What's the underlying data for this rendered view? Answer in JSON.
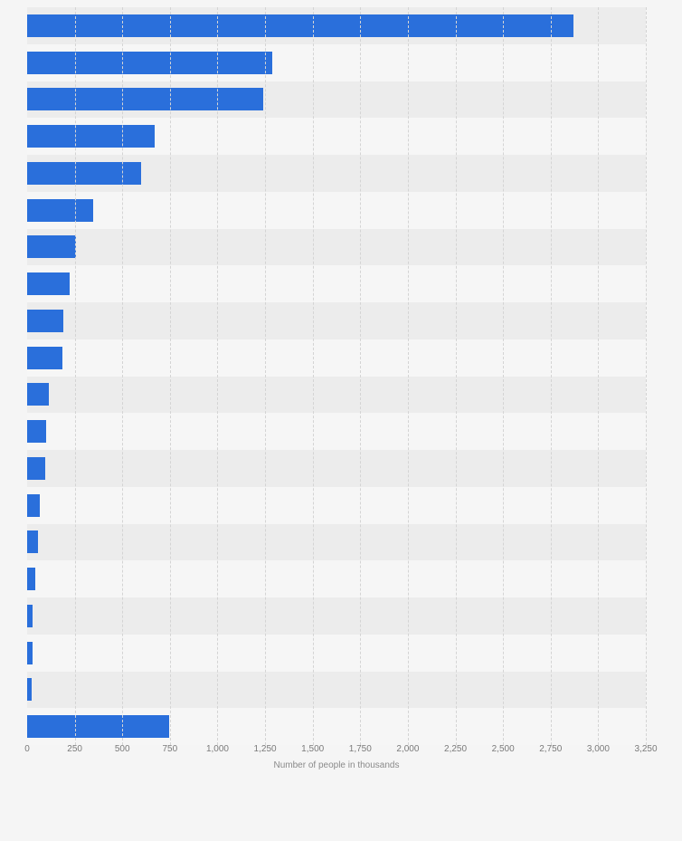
{
  "chart_data": {
    "type": "bar",
    "orientation": "horizontal",
    "title": "",
    "xlabel": "Number of people in thousands",
    "ylabel": "",
    "xlim": [
      0,
      3250
    ],
    "x_ticks": [
      "0",
      "250",
      "500",
      "750",
      "1,000",
      "1,250",
      "1,500",
      "1,750",
      "2,000",
      "2,250",
      "2,500",
      "2,750",
      "3,000",
      "3,250"
    ],
    "x_tick_values": [
      0,
      250,
      500,
      750,
      1000,
      1250,
      1500,
      1750,
      2000,
      2250,
      2500,
      2750,
      3000,
      3250
    ],
    "values": [
      2870,
      1290,
      1240,
      670,
      600,
      345,
      255,
      225,
      190,
      185,
      115,
      100,
      95,
      65,
      55,
      45,
      30,
      27,
      22,
      745
    ],
    "category_labels_visible": false,
    "grid": "vertical-dashed",
    "legend": "none",
    "bar_color": "#2a6fdb",
    "stripe_color_odd": "#ececec",
    "stripe_color_even": "#f6f6f6"
  }
}
